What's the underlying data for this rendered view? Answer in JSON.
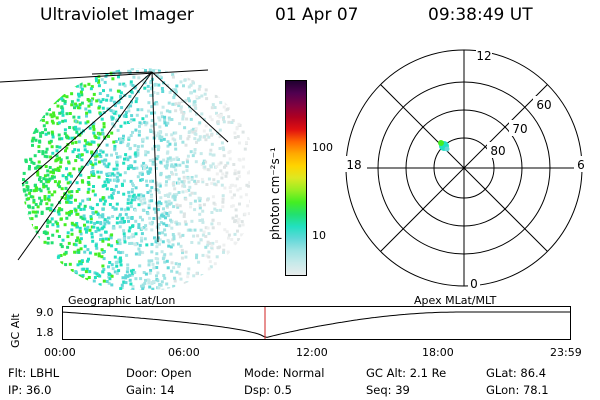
{
  "header": {
    "title": "Ultraviolet Imager",
    "date": "01 Apr 07",
    "time": "09:38:49 UT"
  },
  "colorbar": {
    "label": "photon cm⁻²s⁻¹",
    "ticks": [
      "100",
      "10"
    ],
    "colors": [
      "#e8ecec",
      "#c7eaea",
      "#9fe3e3",
      "#60d8d8",
      "#22e0c0",
      "#22e070",
      "#44ee22",
      "#99ee22",
      "#dde822",
      "#ffd400",
      "#ffaa00",
      "#ff6600",
      "#e01010",
      "#b00020",
      "#800040",
      "#500050",
      "#200030"
    ]
  },
  "polar_plot": {
    "mlt_labels": [
      "12",
      "18",
      "6",
      "0"
    ],
    "lat_labels": [
      "60",
      "70",
      "80"
    ]
  },
  "timeline": {
    "ylabel": "GC Alt",
    "yticks": [
      "9.0",
      "1.8"
    ],
    "left_label": "Geographic Lat/Lon",
    "right_label": "Apex MLat/MLT",
    "xticks": [
      "00:00",
      "06:00",
      "12:00",
      "18:00",
      "23:59"
    ]
  },
  "info": {
    "row1": [
      {
        "key": "Flt:",
        "value": "LBHL"
      },
      {
        "key": "Door:",
        "value": "Open"
      },
      {
        "key": "Mode:",
        "value": "Normal"
      },
      {
        "key": "GC Alt:",
        "value": "2.1 Re"
      },
      {
        "key": "GLat:",
        "value": "86.4"
      }
    ],
    "row2": [
      {
        "key": "IP:",
        "value": "36.0"
      },
      {
        "key": "Gain:",
        "value": "14"
      },
      {
        "key": "Dsp:",
        "value": "0.5"
      },
      {
        "key": "Seq:",
        "value": "39"
      },
      {
        "key": "GLon:",
        "value": "78.1"
      }
    ]
  }
}
